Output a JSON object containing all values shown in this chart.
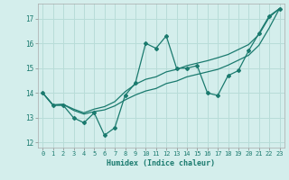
{
  "xlabel": "Humidex (Indice chaleur)",
  "bg_color": "#d4eeec",
  "line_color": "#1a7a6e",
  "grid_color": "#b8dcd8",
  "xlim": [
    -0.5,
    23.5
  ],
  "ylim": [
    11.8,
    17.6
  ],
  "xticks": [
    0,
    1,
    2,
    3,
    4,
    5,
    6,
    7,
    8,
    9,
    10,
    11,
    12,
    13,
    14,
    15,
    16,
    17,
    18,
    19,
    20,
    21,
    22,
    23
  ],
  "yticks": [
    12,
    13,
    14,
    15,
    16,
    17
  ],
  "line1_x": [
    0,
    1,
    2,
    3,
    4,
    5,
    6,
    7,
    8,
    9,
    10,
    11,
    12,
    13,
    14,
    15,
    16,
    17,
    18,
    19,
    20,
    21,
    22,
    23
  ],
  "line1_y": [
    14.0,
    13.5,
    13.5,
    13.0,
    12.8,
    13.2,
    12.3,
    12.6,
    13.9,
    14.4,
    16.0,
    15.8,
    16.3,
    15.0,
    15.0,
    15.1,
    14.0,
    13.9,
    14.7,
    14.9,
    15.7,
    16.4,
    17.1,
    17.4
  ],
  "line2_x": [
    0,
    1,
    2,
    3,
    4,
    5,
    6,
    7,
    8,
    9,
    10,
    11,
    12,
    13,
    14,
    15,
    16,
    17,
    18,
    19,
    20,
    21,
    22,
    23
  ],
  "line2_y": [
    14.0,
    13.52,
    13.54,
    13.35,
    13.2,
    13.35,
    13.45,
    13.65,
    14.05,
    14.35,
    14.55,
    14.65,
    14.85,
    14.95,
    15.1,
    15.2,
    15.3,
    15.42,
    15.55,
    15.75,
    15.95,
    16.35,
    17.05,
    17.4
  ],
  "line3_x": [
    0,
    1,
    2,
    3,
    4,
    5,
    6,
    7,
    8,
    9,
    10,
    11,
    12,
    13,
    14,
    15,
    16,
    17,
    18,
    19,
    20,
    21,
    22,
    23
  ],
  "line3_y": [
    14.0,
    13.52,
    13.54,
    13.3,
    13.15,
    13.25,
    13.32,
    13.48,
    13.72,
    13.92,
    14.08,
    14.18,
    14.38,
    14.48,
    14.65,
    14.75,
    14.85,
    14.95,
    15.12,
    15.32,
    15.52,
    15.92,
    16.62,
    17.4
  ]
}
